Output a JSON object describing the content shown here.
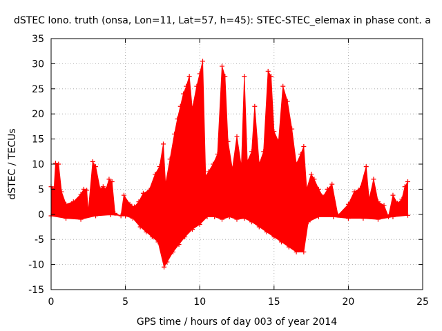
{
  "chart_data": {
    "type": "scatter",
    "title": "dSTEC Iono. truth (onsa, Lon=11, Lat=57, h=45): STEC-STEC_elemax in phase cont. a",
    "xlabel": "GPS time / hours of day 003 of year 2014",
    "ylabel": "dSTEC  / TECUs",
    "xlim": [
      0,
      25
    ],
    "ylim": [
      -15,
      35
    ],
    "xticks": [
      "0",
      "5",
      "10",
      "15",
      "20",
      "25"
    ],
    "yticks": [
      "-15",
      "-10",
      "-5",
      "0",
      "5",
      "10",
      "15",
      "20",
      "25",
      "30",
      "35"
    ],
    "grid": true,
    "marker": "+",
    "colors": {
      "series": "#ff0000",
      "grid": "#a0a0a0",
      "axis": "#000000"
    },
    "series": [
      {
        "name": "",
        "color": "#ff0000",
        "upper_envelope": [
          [
            0.0,
            5.5
          ],
          [
            0.2,
            5.2
          ],
          [
            0.3,
            10.2
          ],
          [
            0.5,
            10.0
          ],
          [
            0.7,
            4.5
          ],
          [
            1.0,
            2.0
          ],
          [
            1.5,
            2.5
          ],
          [
            2.0,
            4.0
          ],
          [
            2.2,
            5.0
          ],
          [
            2.4,
            4.8
          ],
          [
            2.5,
            0.5
          ],
          [
            2.8,
            10.5
          ],
          [
            3.0,
            9.5
          ],
          [
            3.3,
            5.0
          ],
          [
            3.5,
            5.5
          ],
          [
            3.7,
            5.0
          ],
          [
            3.9,
            7.0
          ],
          [
            4.1,
            6.5
          ],
          [
            4.3,
            0.2
          ],
          [
            4.7,
            -0.3
          ],
          [
            4.9,
            3.8
          ],
          [
            5.3,
            2.0
          ],
          [
            5.6,
            1.5
          ],
          [
            5.9,
            2.5
          ],
          [
            6.2,
            4.2
          ],
          [
            6.6,
            4.8
          ],
          [
            7.0,
            8.0
          ],
          [
            7.3,
            9.5
          ],
          [
            7.55,
            14.0
          ],
          [
            7.7,
            6.0
          ],
          [
            8.0,
            11.0
          ],
          [
            8.3,
            16.0
          ],
          [
            8.5,
            19.0
          ],
          [
            8.7,
            21.5
          ],
          [
            8.9,
            24.0
          ],
          [
            9.1,
            25.5
          ],
          [
            9.3,
            27.5
          ],
          [
            9.5,
            21.0
          ],
          [
            9.8,
            25.5
          ],
          [
            10.0,
            28.0
          ],
          [
            10.2,
            30.5
          ],
          [
            10.4,
            7.5
          ],
          [
            10.6,
            8.5
          ],
          [
            10.9,
            10.0
          ],
          [
            11.2,
            12.0
          ],
          [
            11.5,
            29.5
          ],
          [
            11.7,
            27.5
          ],
          [
            11.9,
            14.5
          ],
          [
            12.2,
            9.0
          ],
          [
            12.5,
            15.5
          ],
          [
            12.8,
            9.5
          ],
          [
            13.0,
            27.5
          ],
          [
            13.2,
            10.5
          ],
          [
            13.5,
            12.5
          ],
          [
            13.7,
            21.5
          ],
          [
            14.0,
            10.0
          ],
          [
            14.3,
            12.5
          ],
          [
            14.6,
            28.5
          ],
          [
            14.8,
            27.5
          ],
          [
            15.0,
            16.5
          ],
          [
            15.3,
            14.5
          ],
          [
            15.6,
            25.5
          ],
          [
            15.9,
            22.5
          ],
          [
            16.2,
            17.0
          ],
          [
            16.5,
            10.0
          ],
          [
            16.8,
            12.0
          ],
          [
            17.0,
            13.5
          ],
          [
            17.2,
            5.0
          ],
          [
            17.5,
            8.0
          ],
          [
            17.7,
            7.0
          ],
          [
            18.0,
            5.0
          ],
          [
            18.3,
            3.5
          ],
          [
            18.6,
            5.0
          ],
          [
            18.9,
            6.0
          ],
          [
            19.3,
            -0.2
          ],
          [
            20.0,
            2.0
          ],
          [
            20.4,
            4.5
          ],
          [
            20.8,
            5.2
          ],
          [
            21.2,
            9.5
          ],
          [
            21.4,
            3.0
          ],
          [
            21.7,
            7.0
          ],
          [
            22.0,
            2.5
          ],
          [
            22.4,
            1.8
          ],
          [
            22.7,
            -0.5
          ],
          [
            23.0,
            3.8
          ],
          [
            23.3,
            2.2
          ],
          [
            23.6,
            3.0
          ],
          [
            23.8,
            5.5
          ],
          [
            24.0,
            6.5
          ]
        ],
        "lower_envelope": [
          [
            0.0,
            -0.3
          ],
          [
            1.0,
            -0.8
          ],
          [
            2.0,
            -1.0
          ],
          [
            3.0,
            -0.3
          ],
          [
            4.0,
            -0.1
          ],
          [
            5.0,
            -0.3
          ],
          [
            5.5,
            -0.8
          ],
          [
            6.0,
            -2.5
          ],
          [
            6.4,
            -3.5
          ],
          [
            6.8,
            -4.5
          ],
          [
            7.2,
            -5.5
          ],
          [
            7.6,
            -10.5
          ],
          [
            7.8,
            -9.5
          ],
          [
            8.2,
            -7.5
          ],
          [
            8.6,
            -6.0
          ],
          [
            9.0,
            -4.5
          ],
          [
            9.5,
            -3.0
          ],
          [
            10.0,
            -2.0
          ],
          [
            10.5,
            -0.5
          ],
          [
            11.0,
            -0.5
          ],
          [
            11.5,
            -1.0
          ],
          [
            12.0,
            -0.5
          ],
          [
            12.5,
            -1.0
          ],
          [
            13.0,
            -0.8
          ],
          [
            13.5,
            -1.5
          ],
          [
            14.0,
            -2.5
          ],
          [
            14.5,
            -3.5
          ],
          [
            15.0,
            -4.5
          ],
          [
            15.5,
            -5.5
          ],
          [
            16.0,
            -6.5
          ],
          [
            16.5,
            -7.5
          ],
          [
            17.0,
            -7.5
          ],
          [
            17.3,
            -1.5
          ],
          [
            18.0,
            -0.5
          ],
          [
            19.0,
            -0.5
          ],
          [
            20.0,
            -0.8
          ],
          [
            21.0,
            -0.8
          ],
          [
            22.0,
            -1.0
          ],
          [
            23.0,
            -0.5
          ],
          [
            24.0,
            -0.2
          ]
        ]
      }
    ]
  }
}
